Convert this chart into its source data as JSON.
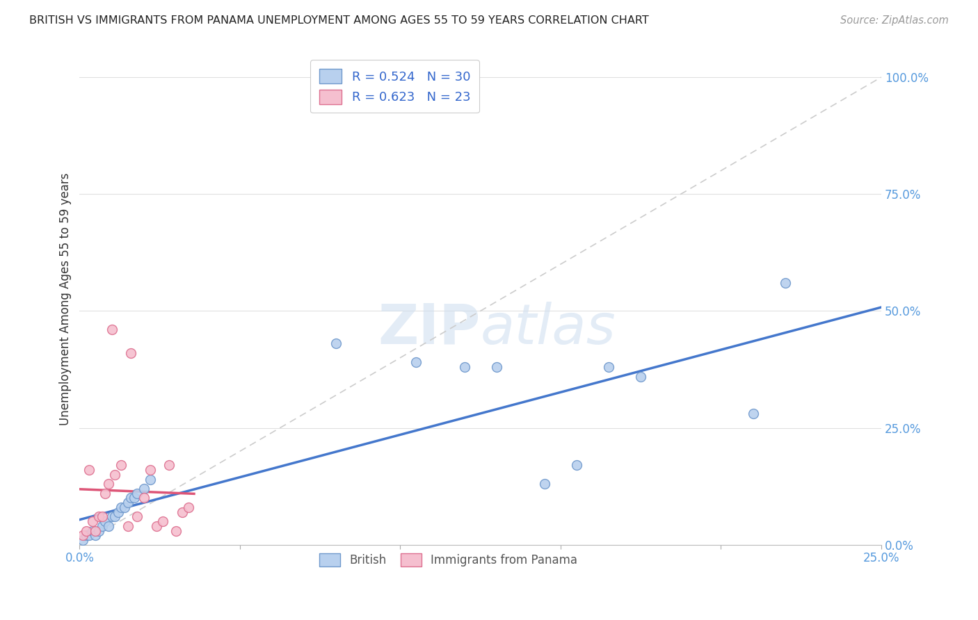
{
  "title": "BRITISH VS IMMIGRANTS FROM PANAMA UNEMPLOYMENT AMONG AGES 55 TO 59 YEARS CORRELATION CHART",
  "source": "Source: ZipAtlas.com",
  "ylabel": "Unemployment Among Ages 55 to 59 years",
  "xlim": [
    0.0,
    0.25
  ],
  "ylim": [
    0.0,
    1.05
  ],
  "xticks": [
    0.0,
    0.05,
    0.1,
    0.15,
    0.2,
    0.25
  ],
  "xtick_labels": [
    "0.0%",
    "",
    "",
    "",
    "",
    "25.0%"
  ],
  "yticks": [
    0.0,
    0.25,
    0.5,
    0.75,
    1.0
  ],
  "ytick_labels": [
    "0.0%",
    "25.0%",
    "50.0%",
    "75.0%",
    "100.0%"
  ],
  "british_x": [
    0.001,
    0.002,
    0.003,
    0.004,
    0.005,
    0.006,
    0.007,
    0.008,
    0.009,
    0.01,
    0.011,
    0.012,
    0.013,
    0.014,
    0.015,
    0.016,
    0.017,
    0.018,
    0.02,
    0.022,
    0.08,
    0.105,
    0.12,
    0.13,
    0.145,
    0.155,
    0.165,
    0.175,
    0.21,
    0.22
  ],
  "british_y": [
    0.01,
    0.02,
    0.02,
    0.03,
    0.02,
    0.03,
    0.04,
    0.05,
    0.04,
    0.06,
    0.06,
    0.07,
    0.08,
    0.08,
    0.09,
    0.1,
    0.1,
    0.11,
    0.12,
    0.14,
    0.43,
    0.39,
    0.38,
    0.38,
    0.13,
    0.17,
    0.38,
    0.36,
    0.28,
    0.56
  ],
  "panama_x": [
    0.001,
    0.002,
    0.003,
    0.004,
    0.005,
    0.006,
    0.007,
    0.008,
    0.009,
    0.01,
    0.011,
    0.013,
    0.015,
    0.016,
    0.018,
    0.02,
    0.022,
    0.024,
    0.026,
    0.028,
    0.03,
    0.032,
    0.034
  ],
  "panama_y": [
    0.02,
    0.03,
    0.16,
    0.05,
    0.03,
    0.06,
    0.06,
    0.11,
    0.13,
    0.46,
    0.15,
    0.17,
    0.04,
    0.41,
    0.06,
    0.1,
    0.16,
    0.04,
    0.05,
    0.17,
    0.03,
    0.07,
    0.08
  ],
  "british_R": 0.524,
  "british_N": 30,
  "panama_R": 0.623,
  "panama_N": 23,
  "british_color": "#b8d0ee",
  "british_edge_color": "#7099cc",
  "panama_color": "#f5bfcf",
  "panama_edge_color": "#dd7090",
  "british_line_color": "#4477cc",
  "panama_line_color": "#dd5577",
  "diagonal_color": "#cccccc",
  "watermark_color": "#ddeeff",
  "background_color": "#ffffff",
  "grid_color": "#e0e0e0",
  "title_color": "#222222",
  "axis_label_color": "#333333",
  "tick_color": "#5599dd",
  "source_color": "#999999",
  "legend_text_color": "#3366cc",
  "bottom_legend_color": "#555555",
  "marker_size": 100
}
